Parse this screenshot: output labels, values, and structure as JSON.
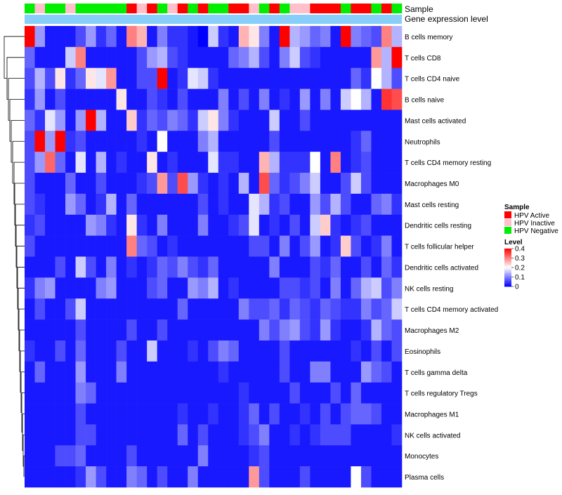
{
  "chart_data": {
    "type": "heatmap",
    "annotation_labels": {
      "sample": "Sample",
      "expression": "Gene expression level"
    },
    "rows": [
      "B cells memory",
      "T cells CD8",
      "T cells CD4 naive",
      "B cells naive",
      "Mast cells activated",
      "Neutrophils",
      "T cells CD4 memory resting",
      "Macrophages M0",
      "Mast cells resting",
      "Dendritic cells resting",
      "T cells follicular helper",
      "Dendritic cells activated",
      "NK cells resting",
      "T cells CD4 memory activated",
      "Macrophages M2",
      "Eosinophils",
      "T cells gamma delta",
      "T cells regulatory  Tregs",
      "Macrophages M1",
      "NK cells activated",
      "Monocytes",
      "Plasma cells"
    ],
    "sample_groups": [
      "N",
      "I",
      "N",
      "N",
      "I",
      "N",
      "N",
      "N",
      "N",
      "N",
      "A",
      "I",
      "A",
      "N",
      "I",
      "A",
      "N",
      "A",
      "N",
      "N",
      "A",
      "A",
      "I",
      "N",
      "A",
      "N",
      "I",
      "I",
      "A",
      "A",
      "A",
      "N",
      "A",
      "A",
      "N",
      "A",
      "N"
    ],
    "values": [
      [
        0.4,
        0.12,
        0.02,
        0.02,
        0.02,
        0.06,
        0.12,
        0.04,
        0.08,
        0.02,
        0.3,
        0.26,
        0.02,
        0.1,
        0.04,
        0.04,
        0.02,
        0.0,
        0.16,
        0.04,
        0.02,
        0.26,
        0.22,
        0.1,
        0.02,
        0.4,
        0.14,
        0.12,
        0.08,
        0.1,
        0.02,
        0.4,
        0.1,
        0.08,
        0.06,
        0.3,
        0.14
      ],
      [
        0.08,
        0.02,
        0.02,
        0.02,
        0.16,
        0.3,
        0.02,
        0.02,
        0.02,
        0.02,
        0.02,
        0.06,
        0.12,
        0.14,
        0.06,
        0.04,
        0.02,
        0.02,
        0.02,
        0.02,
        0.08,
        0.1,
        0.14,
        0.06,
        0.02,
        0.1,
        0.16,
        0.06,
        0.04,
        0.02,
        0.02,
        0.02,
        0.02,
        0.02,
        0.28,
        0.14,
        0.4
      ],
      [
        0.06,
        0.14,
        0.06,
        0.22,
        0.04,
        0.08,
        0.22,
        0.18,
        0.28,
        0.02,
        0.02,
        0.06,
        0.06,
        0.4,
        0.02,
        0.04,
        0.18,
        0.16,
        0.04,
        0.02,
        0.02,
        0.02,
        0.02,
        0.02,
        0.02,
        0.02,
        0.02,
        0.02,
        0.02,
        0.02,
        0.02,
        0.02,
        0.08,
        0.04,
        0.2,
        0.14,
        0.06
      ],
      [
        0.04,
        0.12,
        0.02,
        0.06,
        0.02,
        0.02,
        0.02,
        0.02,
        0.02,
        0.22,
        0.02,
        0.02,
        0.06,
        0.04,
        0.02,
        0.06,
        0.02,
        0.02,
        0.02,
        0.1,
        0.02,
        0.06,
        0.02,
        0.1,
        0.02,
        0.04,
        0.02,
        0.12,
        0.02,
        0.1,
        0.02,
        0.16,
        0.2,
        0.14,
        0.02,
        0.36,
        0.34
      ],
      [
        0.08,
        0.04,
        0.18,
        0.12,
        0.02,
        0.12,
        0.4,
        0.14,
        0.02,
        0.02,
        0.24,
        0.04,
        0.08,
        0.06,
        0.1,
        0.08,
        0.04,
        0.16,
        0.22,
        0.1,
        0.04,
        0.02,
        0.02,
        0.02,
        0.16,
        0.02,
        0.02,
        0.06,
        0.02,
        0.02,
        0.02,
        0.02,
        0.02,
        0.02,
        0.02,
        0.02,
        0.02
      ],
      [
        0.06,
        0.4,
        0.12,
        0.4,
        0.04,
        0.06,
        0.02,
        0.02,
        0.02,
        0.02,
        0.02,
        0.04,
        0.02,
        0.2,
        0.02,
        0.02,
        0.02,
        0.1,
        0.14,
        0.02,
        0.02,
        0.02,
        0.02,
        0.02,
        0.06,
        0.02,
        0.02,
        0.02,
        0.02,
        0.02,
        0.02,
        0.02,
        0.04,
        0.08,
        0.02,
        0.02,
        0.02
      ],
      [
        0.06,
        0.12,
        0.32,
        0.08,
        0.02,
        0.18,
        0.02,
        0.14,
        0.02,
        0.04,
        0.02,
        0.02,
        0.22,
        0.02,
        0.04,
        0.02,
        0.02,
        0.02,
        0.18,
        0.04,
        0.04,
        0.02,
        0.02,
        0.26,
        0.14,
        0.04,
        0.04,
        0.04,
        0.2,
        0.02,
        0.3,
        0.02,
        0.04,
        0.06,
        0.02,
        0.02,
        0.02
      ],
      [
        0.06,
        0.02,
        0.02,
        0.02,
        0.08,
        0.02,
        0.02,
        0.06,
        0.02,
        0.02,
        0.02,
        0.04,
        0.06,
        0.28,
        0.06,
        0.34,
        0.12,
        0.04,
        0.02,
        0.04,
        0.02,
        0.14,
        0.02,
        0.34,
        0.08,
        0.04,
        0.06,
        0.1,
        0.16,
        0.02,
        0.02,
        0.06,
        0.16,
        0.06,
        0.02,
        0.02,
        0.02
      ],
      [
        0.06,
        0.04,
        0.02,
        0.02,
        0.12,
        0.08,
        0.02,
        0.04,
        0.14,
        0.02,
        0.08,
        0.02,
        0.02,
        0.02,
        0.02,
        0.02,
        0.02,
        0.06,
        0.02,
        0.04,
        0.02,
        0.02,
        0.18,
        0.14,
        0.04,
        0.06,
        0.02,
        0.02,
        0.12,
        0.06,
        0.14,
        0.06,
        0.02,
        0.02,
        0.08,
        0.1,
        0.04
      ],
      [
        0.04,
        0.06,
        0.02,
        0.02,
        0.02,
        0.02,
        0.12,
        0.1,
        0.04,
        0.02,
        0.22,
        0.04,
        0.02,
        0.1,
        0.02,
        0.02,
        0.02,
        0.1,
        0.02,
        0.02,
        0.04,
        0.06,
        0.18,
        0.02,
        0.04,
        0.02,
        0.06,
        0.02,
        0.16,
        0.24,
        0.04,
        0.02,
        0.04,
        0.06,
        0.02,
        0.02,
        0.02
      ],
      [
        0.06,
        0.02,
        0.02,
        0.02,
        0.02,
        0.02,
        0.02,
        0.02,
        0.02,
        0.02,
        0.3,
        0.08,
        0.06,
        0.02,
        0.04,
        0.02,
        0.02,
        0.02,
        0.02,
        0.02,
        0.02,
        0.02,
        0.06,
        0.06,
        0.02,
        0.1,
        0.02,
        0.06,
        0.12,
        0.02,
        0.04,
        0.24,
        0.06,
        0.02,
        0.04,
        0.1,
        0.02
      ],
      [
        0.02,
        0.02,
        0.02,
        0.06,
        0.02,
        0.16,
        0.06,
        0.02,
        0.1,
        0.02,
        0.04,
        0.02,
        0.04,
        0.08,
        0.06,
        0.1,
        0.06,
        0.04,
        0.08,
        0.02,
        0.02,
        0.02,
        0.02,
        0.02,
        0.1,
        0.02,
        0.02,
        0.02,
        0.06,
        0.04,
        0.08,
        0.02,
        0.02,
        0.06,
        0.02,
        0.08,
        0.04
      ],
      [
        0.04,
        0.1,
        0.12,
        0.02,
        0.02,
        0.02,
        0.02,
        0.1,
        0.12,
        0.02,
        0.02,
        0.02,
        0.06,
        0.08,
        0.02,
        0.02,
        0.12,
        0.1,
        0.14,
        0.02,
        0.04,
        0.02,
        0.02,
        0.02,
        0.02,
        0.06,
        0.06,
        0.04,
        0.06,
        0.02,
        0.1,
        0.02,
        0.08,
        0.14,
        0.16,
        0.06,
        0.1
      ],
      [
        0.02,
        0.06,
        0.02,
        0.02,
        0.06,
        0.16,
        0.02,
        0.02,
        0.02,
        0.02,
        0.02,
        0.02,
        0.02,
        0.02,
        0.02,
        0.08,
        0.02,
        0.02,
        0.02,
        0.02,
        0.02,
        0.1,
        0.06,
        0.06,
        0.08,
        0.04,
        0.08,
        0.06,
        0.04,
        0.08,
        0.06,
        0.04,
        0.04,
        0.1,
        0.06,
        0.08,
        0.16
      ],
      [
        0.02,
        0.02,
        0.02,
        0.02,
        0.02,
        0.06,
        0.02,
        0.02,
        0.02,
        0.02,
        0.06,
        0.02,
        0.02,
        0.06,
        0.02,
        0.02,
        0.02,
        0.02,
        0.02,
        0.02,
        0.02,
        0.02,
        0.02,
        0.1,
        0.06,
        0.1,
        0.12,
        0.06,
        0.04,
        0.12,
        0.04,
        0.02,
        0.02,
        0.04,
        0.14,
        0.08,
        0.06
      ],
      [
        0.04,
        0.02,
        0.02,
        0.06,
        0.02,
        0.08,
        0.02,
        0.02,
        0.02,
        0.06,
        0.02,
        0.02,
        0.16,
        0.02,
        0.02,
        0.02,
        0.04,
        0.02,
        0.06,
        0.1,
        0.08,
        0.02,
        0.02,
        0.02,
        0.02,
        0.06,
        0.02,
        0.02,
        0.02,
        0.02,
        0.02,
        0.02,
        0.04,
        0.02,
        0.06,
        0.02,
        0.06
      ],
      [
        0.02,
        0.08,
        0.02,
        0.02,
        0.02,
        0.12,
        0.02,
        0.02,
        0.02,
        0.1,
        0.02,
        0.02,
        0.02,
        0.02,
        0.02,
        0.02,
        0.02,
        0.02,
        0.02,
        0.04,
        0.02,
        0.02,
        0.02,
        0.02,
        0.02,
        0.06,
        0.02,
        0.02,
        0.1,
        0.1,
        0.02,
        0.02,
        0.02,
        0.12,
        0.08,
        0.06,
        0.02
      ],
      [
        0.02,
        0.02,
        0.02,
        0.02,
        0.02,
        0.1,
        0.08,
        0.02,
        0.02,
        0.02,
        0.02,
        0.02,
        0.02,
        0.02,
        0.02,
        0.02,
        0.02,
        0.02,
        0.02,
        0.02,
        0.02,
        0.04,
        0.02,
        0.02,
        0.02,
        0.02,
        0.06,
        0.02,
        0.02,
        0.02,
        0.06,
        0.02,
        0.08,
        0.02,
        0.02,
        0.02,
        0.02
      ],
      [
        0.02,
        0.02,
        0.02,
        0.02,
        0.02,
        0.06,
        0.02,
        0.02,
        0.02,
        0.02,
        0.02,
        0.02,
        0.02,
        0.02,
        0.02,
        0.04,
        0.02,
        0.02,
        0.04,
        0.02,
        0.02,
        0.04,
        0.08,
        0.02,
        0.06,
        0.02,
        0.02,
        0.04,
        0.02,
        0.06,
        0.02,
        0.06,
        0.08,
        0.08,
        0.06,
        0.02,
        0.02
      ],
      [
        0.02,
        0.02,
        0.02,
        0.02,
        0.02,
        0.06,
        0.06,
        0.02,
        0.02,
        0.02,
        0.02,
        0.02,
        0.02,
        0.02,
        0.02,
        0.08,
        0.02,
        0.06,
        0.02,
        0.02,
        0.02,
        0.04,
        0.06,
        0.1,
        0.02,
        0.02,
        0.04,
        0.02,
        0.04,
        0.06,
        0.06,
        0.06,
        0.02,
        0.02,
        0.02,
        0.02,
        0.04
      ],
      [
        0.02,
        0.02,
        0.02,
        0.06,
        0.06,
        0.08,
        0.02,
        0.02,
        0.02,
        0.02,
        0.06,
        0.02,
        0.02,
        0.02,
        0.02,
        0.02,
        0.02,
        0.1,
        0.02,
        0.02,
        0.02,
        0.02,
        0.04,
        0.06,
        0.02,
        0.02,
        0.02,
        0.02,
        0.02,
        0.02,
        0.02,
        0.02,
        0.02,
        0.02,
        0.02,
        0.02,
        0.02
      ],
      [
        0.02,
        0.02,
        0.02,
        0.02,
        0.02,
        0.04,
        0.12,
        0.06,
        0.02,
        0.02,
        0.1,
        0.08,
        0.02,
        0.06,
        0.02,
        0.02,
        0.1,
        0.02,
        0.02,
        0.02,
        0.02,
        0.02,
        0.28,
        0.06,
        0.02,
        0.02,
        0.02,
        0.06,
        0.02,
        0.02,
        0.02,
        0.02,
        0.2,
        0.06,
        0.02,
        0.02,
        0.02
      ]
    ],
    "legend": {
      "sample_title": "Sample",
      "sample_entries": [
        {
          "key": "A",
          "label": "HPV Active",
          "color": "#ff0000"
        },
        {
          "key": "I",
          "label": "HPV Inactive",
          "color": "#ffc0cb"
        },
        {
          "key": "N",
          "label": "HPV Negative",
          "color": "#00ee00"
        }
      ],
      "level_title": "Level",
      "level_ticks": [
        "0.4",
        "0.3",
        "0.2",
        "0.1",
        "0"
      ],
      "level_tick_values": [
        0.4,
        0.3,
        0.2,
        0.1,
        0
      ],
      "range": [
        0,
        0.4
      ]
    },
    "colors": {
      "low": "#0000ff",
      "mid": "#ffffff",
      "high": "#ff0000",
      "expression_bar": "#87cefa"
    }
  }
}
